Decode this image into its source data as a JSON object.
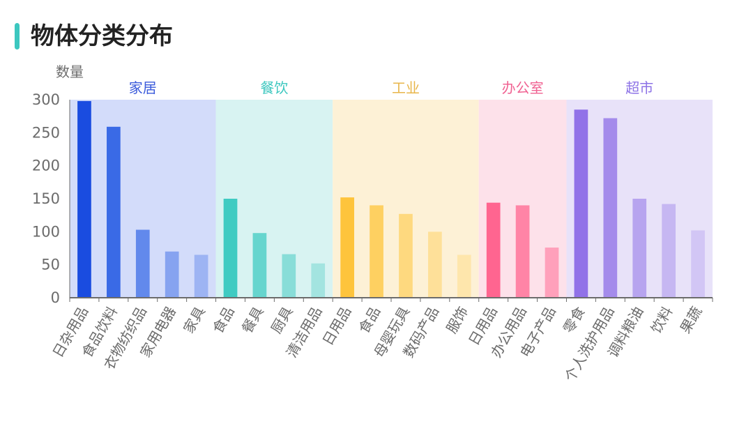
{
  "header": {
    "title": "物体分类分布",
    "accent_color": "#3cc7bf"
  },
  "chart_data": {
    "type": "bar",
    "title": "物体分类分布",
    "ylabel": "数量",
    "xlabel": "",
    "ylim": [
      0,
      300
    ],
    "yticks": [
      0,
      50,
      100,
      150,
      200,
      250,
      300
    ],
    "grid": false,
    "groups": [
      {
        "name": "家居",
        "label_color": "#3b5bdb",
        "band_color": "#d3dcfa",
        "categories": [
          "日杂用品",
          "食品饮料",
          "衣物纺织品",
          "家用电器",
          "家具"
        ],
        "values": [
          298,
          259,
          103,
          70,
          65
        ],
        "bar_colors": [
          "#1a4ce0",
          "#3a6ae6",
          "#6289ec",
          "#86a3f0",
          "#9db4f3"
        ]
      },
      {
        "name": "餐饮",
        "label_color": "#3cc7bf",
        "band_color": "#d8f3f2",
        "categories": [
          "食品",
          "餐具",
          "厨具",
          "清洁用品"
        ],
        "values": [
          150,
          98,
          66,
          52
        ],
        "bar_colors": [
          "#40cbc2",
          "#66d5ce",
          "#88ddd8",
          "#a3e4e0"
        ]
      },
      {
        "name": "工业",
        "label_color": "#e8b64a",
        "band_color": "#fdf1d6",
        "categories": [
          "日用品",
          "食品",
          "母婴玩具",
          "数码产品",
          "服饰"
        ],
        "values": [
          152,
          140,
          127,
          100,
          65
        ],
        "bar_colors": [
          "#fec43c",
          "#fed061",
          "#fed97f",
          "#fee099",
          "#fee6ac"
        ]
      },
      {
        "name": "办公室",
        "label_color": "#f06292",
        "band_color": "#fde1ea",
        "categories": [
          "日用品",
          "办公用品",
          "电子产品"
        ],
        "values": [
          144,
          140,
          76
        ],
        "bar_colors": [
          "#ff6590",
          "#ff84a6",
          "#ffa0bb"
        ]
      },
      {
        "name": "超市",
        "label_color": "#8c72e6",
        "band_color": "#e8e2f9",
        "categories": [
          "零食",
          "个人洗护用品",
          "调料粮油",
          "饮料",
          "果蔬"
        ],
        "values": [
          285,
          272,
          150,
          142,
          102
        ],
        "bar_colors": [
          "#9172e8",
          "#a48beb",
          "#b7a4ef",
          "#c6b7f2",
          "#d2c6f5"
        ]
      }
    ]
  }
}
